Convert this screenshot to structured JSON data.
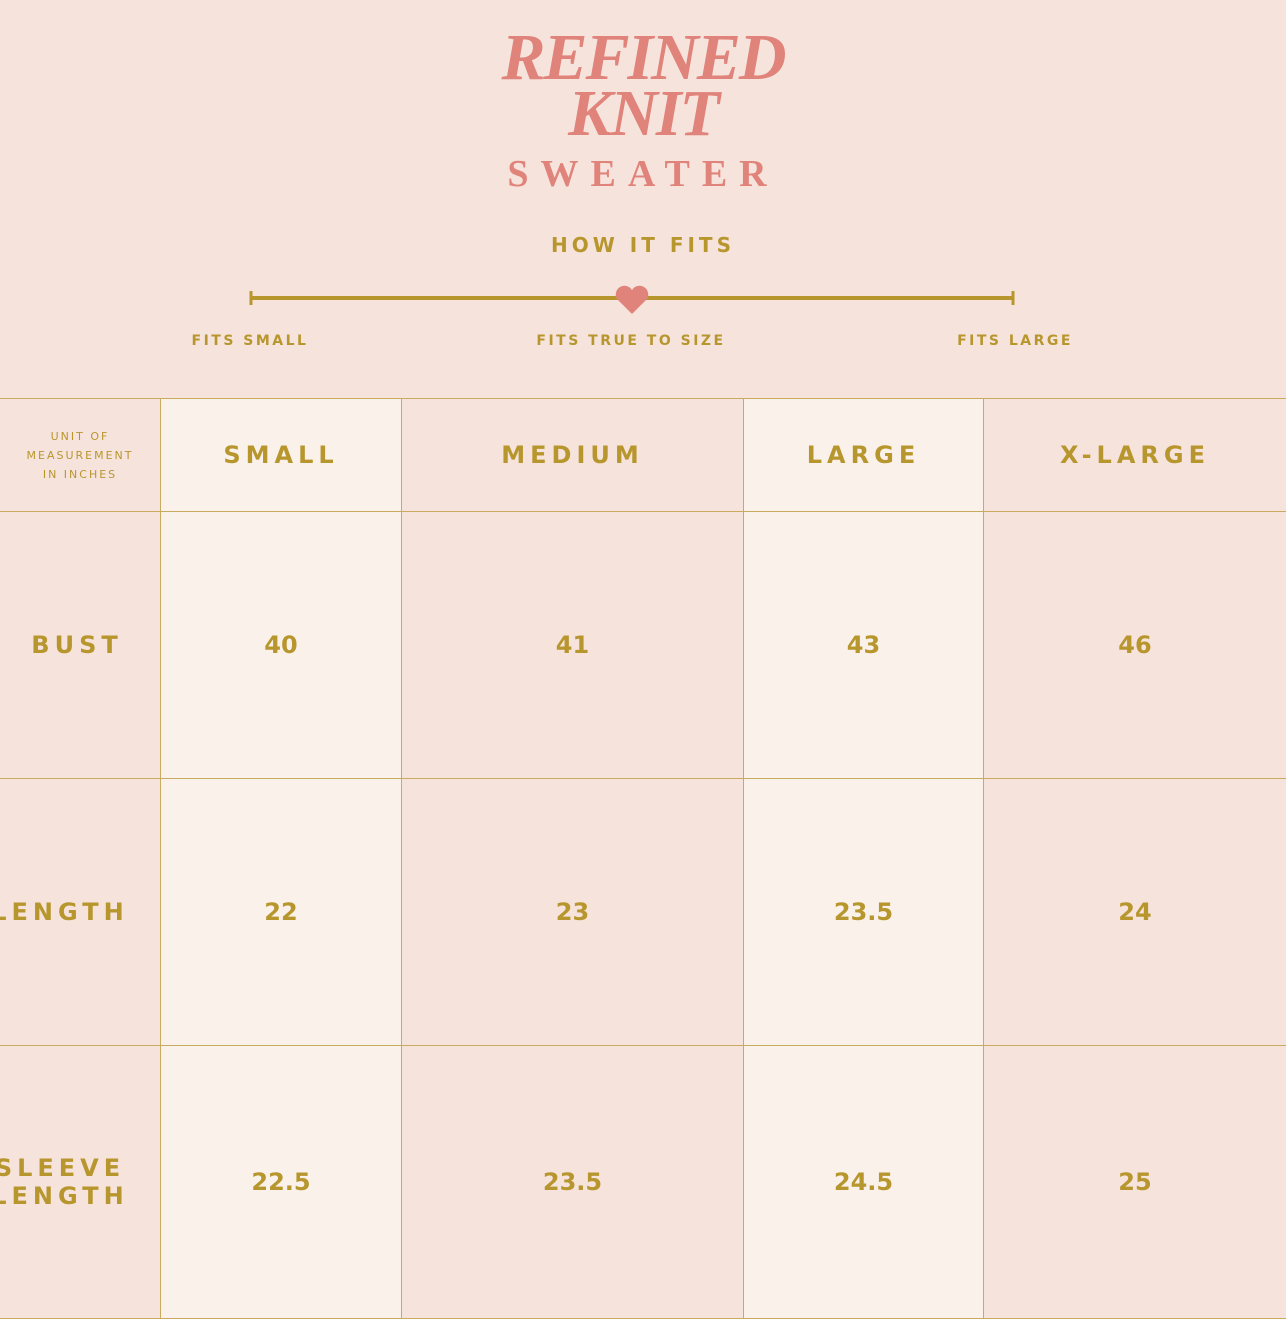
{
  "header": {
    "title_lines": [
      "REFINED",
      "KNIT"
    ],
    "subtitle": "SWEATER"
  },
  "fit": {
    "heading": "HOW IT FITS",
    "labels": [
      "FITS SMALL",
      "FITS TRUE TO SIZE",
      "FITS LARGE"
    ]
  },
  "table": {
    "unit_label": [
      "UNIT OF",
      "MEASUREMENT",
      "IN INCHES"
    ],
    "columns": [
      "SMALL",
      "MEDIUM",
      "LARGE",
      "X-LARGE"
    ],
    "rows": [
      {
        "label": [
          "BUST"
        ],
        "values": [
          "40",
          "41",
          "43",
          "46"
        ]
      },
      {
        "label": [
          "LENGTH"
        ],
        "values": [
          "22",
          "23",
          "23.5",
          "24"
        ]
      },
      {
        "label": [
          "SLEEVE",
          "LENGTH"
        ],
        "values": [
          "22.5",
          "23.5",
          "24.5",
          "25"
        ]
      }
    ]
  }
}
